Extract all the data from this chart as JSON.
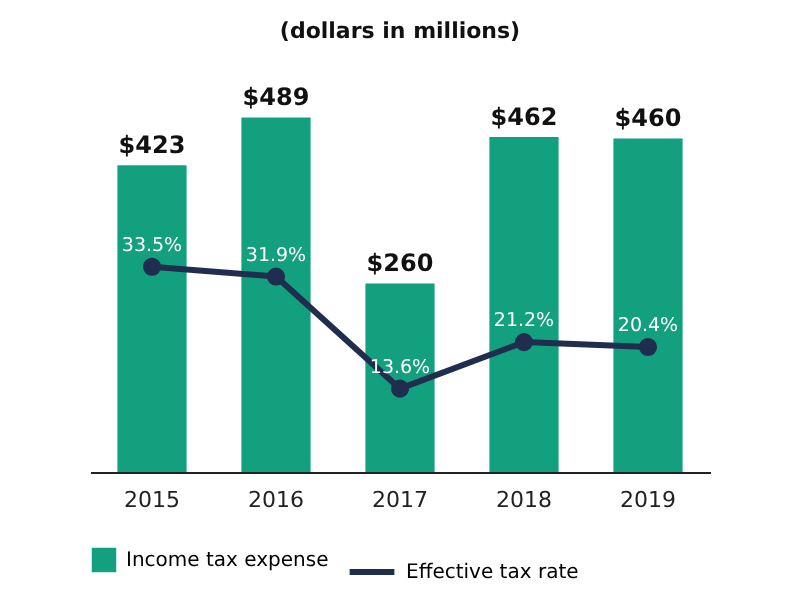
{
  "chart_data": {
    "type": "bar",
    "title": "(dollars in millions)",
    "categories": [
      "2015",
      "2016",
      "2017",
      "2018",
      "2019"
    ],
    "series": [
      {
        "name": "Income tax expense",
        "color": "#12a07f",
        "values": [
          423,
          489,
          260,
          462,
          460
        ],
        "value_labels": [
          "$423",
          "$489",
          "$260",
          "$462",
          "$460"
        ]
      },
      {
        "name": "Effective tax rate",
        "type": "line",
        "axis": "y2",
        "color": "#1f2d4e",
        "values": [
          33.5,
          31.9,
          13.6,
          21.2,
          20.4
        ],
        "value_labels": [
          "33.5%",
          "31.9%",
          "13.6%",
          "21.2%",
          "20.4%"
        ]
      }
    ],
    "marker": "circle",
    "legend": "bottom",
    "tick_labels": "x"
  }
}
